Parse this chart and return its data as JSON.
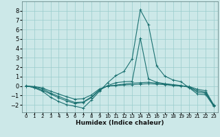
{
  "xlabel": "Humidex (Indice chaleur)",
  "background_color": "#cce8e8",
  "grid_color": "#99cccc",
  "line_color": "#1a7070",
  "xlim": [
    -0.5,
    23.5
  ],
  "ylim": [
    -2.8,
    9.0
  ],
  "yticks": [
    -2,
    -1,
    0,
    1,
    2,
    3,
    4,
    5,
    6,
    7,
    8
  ],
  "xticks": [
    0,
    1,
    2,
    3,
    4,
    5,
    6,
    7,
    8,
    9,
    10,
    11,
    12,
    13,
    14,
    15,
    16,
    17,
    18,
    19,
    20,
    21,
    22,
    23
  ],
  "series": [
    {
      "x": [
        0,
        1,
        2,
        3,
        4,
        5,
        6,
        7,
        8,
        9,
        10,
        11,
        12,
        13,
        14,
        15,
        16,
        17,
        18,
        19,
        20,
        21,
        22,
        23
      ],
      "y": [
        0.05,
        -0.2,
        -0.55,
        -1.2,
        -1.65,
        -2.0,
        -2.15,
        -2.35,
        -1.5,
        -0.55,
        0.35,
        1.1,
        1.55,
        2.9,
        8.1,
        6.5,
        2.15,
        1.05,
        0.65,
        0.45,
        -0.2,
        -0.85,
        -0.9,
        -2.15
      ]
    },
    {
      "x": [
        0,
        1,
        2,
        3,
        4,
        5,
        6,
        7,
        8,
        9,
        10,
        11,
        12,
        13,
        14,
        15,
        16,
        17,
        18,
        19,
        20,
        21,
        22,
        23
      ],
      "y": [
        0.0,
        -0.15,
        -0.45,
        -0.85,
        -1.25,
        -1.6,
        -1.85,
        -1.75,
        -1.25,
        -0.45,
        0.05,
        0.35,
        0.45,
        0.5,
        5.1,
        0.75,
        0.4,
        0.25,
        0.15,
        0.05,
        -0.15,
        -0.65,
        -0.75,
        -2.1
      ]
    },
    {
      "x": [
        0,
        1,
        2,
        3,
        4,
        5,
        6,
        7,
        8,
        9,
        10,
        11,
        12,
        13,
        14,
        15,
        16,
        17,
        18,
        19,
        20,
        21,
        22,
        23
      ],
      "y": [
        0.0,
        -0.1,
        -0.3,
        -0.75,
        -1.1,
        -1.45,
        -1.75,
        -1.7,
        -1.15,
        -0.4,
        0.0,
        0.1,
        0.2,
        0.3,
        0.35,
        0.4,
        0.3,
        0.2,
        0.1,
        0.05,
        -0.1,
        -0.5,
        -0.65,
        -2.05
      ]
    },
    {
      "x": [
        0,
        1,
        2,
        3,
        4,
        5,
        6,
        7,
        8,
        9,
        10,
        11,
        12,
        13,
        14,
        15,
        16,
        17,
        18,
        19,
        20,
        21,
        22,
        23
      ],
      "y": [
        0.0,
        -0.05,
        -0.2,
        -0.55,
        -0.85,
        -1.15,
        -1.4,
        -1.35,
        -0.95,
        -0.3,
        0.0,
        0.05,
        0.1,
        0.15,
        0.2,
        0.25,
        0.2,
        0.15,
        0.05,
        0.0,
        -0.05,
        -0.35,
        -0.5,
        -2.0
      ]
    }
  ]
}
